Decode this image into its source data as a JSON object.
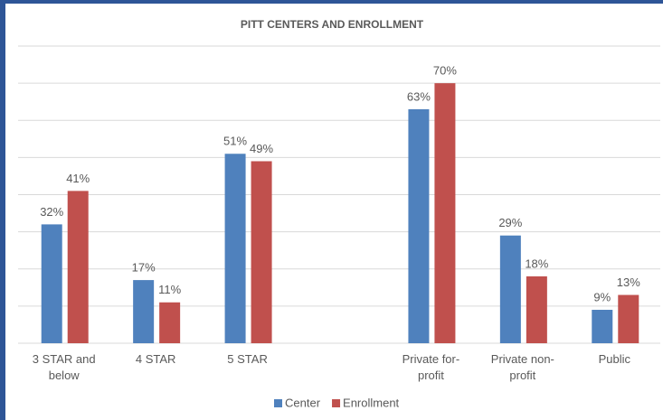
{
  "chart_data": {
    "type": "bar",
    "title": "PITT CENTERS AND ENROLLMENT",
    "categories": [
      "3 STAR and below",
      "4 STAR",
      "5 STAR",
      null,
      "Private for-profit",
      "Private non-profit",
      "Public"
    ],
    "series": [
      {
        "name": "Center",
        "color": "#4f81bd",
        "values": [
          32,
          17,
          51,
          null,
          63,
          29,
          9
        ],
        "value_labels": [
          "32%",
          "17%",
          "51%",
          null,
          "63%",
          "29%",
          "9%"
        ]
      },
      {
        "name": "Enrollment",
        "color": "#c0504d",
        "values": [
          41,
          11,
          49,
          null,
          70,
          18,
          13
        ],
        "value_labels": [
          "41%",
          "11%",
          "49%",
          null,
          "70%",
          "18%",
          "13%"
        ]
      }
    ],
    "ylim": [
      0,
      80
    ],
    "yticks": [
      0,
      10,
      20,
      30,
      40,
      50,
      60,
      70,
      80
    ],
    "grid": true,
    "legend": "bottom"
  }
}
